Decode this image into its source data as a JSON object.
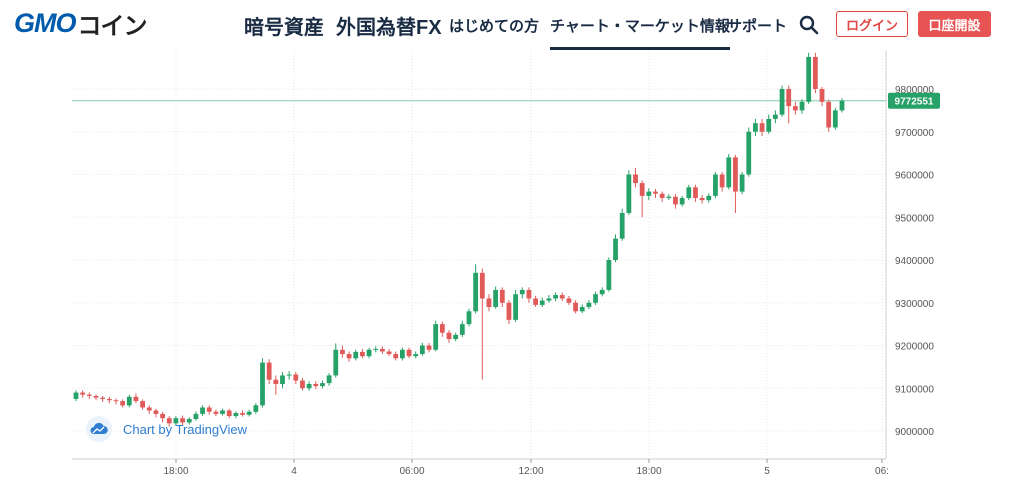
{
  "header": {
    "logo_gmo": "GMO",
    "logo_coin": "コイン",
    "nav": [
      {
        "label": "暗号資産"
      },
      {
        "label": "外国為替FX"
      },
      {
        "label": "はじめての方"
      },
      {
        "label": "チャート・マーケット情報"
      },
      {
        "label": "サポート"
      }
    ],
    "login_label": "ログイン",
    "open_account_label": "口座開設",
    "colors": {
      "navy": "#1a2b44",
      "brand_blue": "#005bac",
      "red": "#e04646"
    }
  },
  "chart": {
    "watermark": "Chart by TradingView",
    "current_price_label": "9772551",
    "y_ticks": [
      "9800000",
      "9700000",
      "9600000",
      "9500000",
      "9400000",
      "9300000",
      "9200000",
      "9100000",
      "9000000"
    ],
    "x_ticks": [
      "18:00",
      "4",
      "06:00",
      "12:00",
      "18:00",
      "5",
      "06:"
    ],
    "colors": {
      "up": "#26a269",
      "down": "#e05a5a",
      "price_line": "#26a269",
      "grid": "#e6e6e6"
    }
  },
  "chart_data": {
    "type": "candlestick",
    "y_unit": "JPY",
    "ylim": [
      8970000,
      9890000
    ],
    "current_price": 9772551,
    "candles": [
      [
        9075000,
        9090000,
        9095000,
        9070000
      ],
      [
        9090000,
        9085000,
        9095000,
        9078000
      ],
      [
        9085000,
        9082000,
        9090000,
        9075000
      ],
      [
        9082000,
        9078000,
        9085000,
        9072000
      ],
      [
        9078000,
        9075000,
        9082000,
        9068000
      ],
      [
        9075000,
        9072000,
        9080000,
        9065000
      ],
      [
        9072000,
        9070000,
        9076000,
        9062000
      ],
      [
        9070000,
        9060000,
        9074000,
        9055000
      ],
      [
        9060000,
        9080000,
        9085000,
        9055000
      ],
      [
        9080000,
        9070000,
        9088000,
        9065000
      ],
      [
        9070000,
        9055000,
        9074000,
        9050000
      ],
      [
        9055000,
        9048000,
        9060000,
        9040000
      ],
      [
        9048000,
        9040000,
        9052000,
        9032000
      ],
      [
        9040000,
        9030000,
        9045000,
        9020000
      ],
      [
        9030000,
        9018000,
        9035000,
        9010000
      ],
      [
        9018000,
        9030000,
        9035000,
        9012000
      ],
      [
        9030000,
        9020000,
        9036000,
        9014000
      ],
      [
        9020000,
        9028000,
        9032000,
        9015000
      ],
      [
        9028000,
        9040000,
        9046000,
        9024000
      ],
      [
        9040000,
        9055000,
        9060000,
        9035000
      ],
      [
        9055000,
        9045000,
        9060000,
        9038000
      ],
      [
        9045000,
        9040000,
        9050000,
        9035000
      ],
      [
        9040000,
        9048000,
        9052000,
        9036000
      ],
      [
        9048000,
        9035000,
        9052000,
        9030000
      ],
      [
        9035000,
        9042000,
        9046000,
        9030000
      ],
      [
        9042000,
        9038000,
        9048000,
        9034000
      ],
      [
        9038000,
        9045000,
        9050000,
        9034000
      ],
      [
        9045000,
        9060000,
        9065000,
        9040000
      ],
      [
        9060000,
        9160000,
        9170000,
        9055000
      ],
      [
        9160000,
        9120000,
        9168000,
        9110000
      ],
      [
        9120000,
        9110000,
        9130000,
        9085000
      ],
      [
        9110000,
        9130000,
        9138000,
        9100000
      ],
      [
        9130000,
        9132000,
        9140000,
        9120000
      ],
      [
        9132000,
        9118000,
        9138000,
        9110000
      ],
      [
        9118000,
        9100000,
        9124000,
        9095000
      ],
      [
        9100000,
        9110000,
        9116000,
        9094000
      ],
      [
        9110000,
        9105000,
        9116000,
        9098000
      ],
      [
        9105000,
        9112000,
        9118000,
        9100000
      ],
      [
        9112000,
        9130000,
        9135000,
        9106000
      ],
      [
        9130000,
        9190000,
        9205000,
        9125000
      ],
      [
        9190000,
        9180000,
        9200000,
        9172000
      ],
      [
        9180000,
        9170000,
        9186000,
        9162000
      ],
      [
        9170000,
        9185000,
        9190000,
        9165000
      ],
      [
        9185000,
        9175000,
        9192000,
        9170000
      ],
      [
        9175000,
        9190000,
        9195000,
        9170000
      ],
      [
        9190000,
        9192000,
        9198000,
        9184000
      ],
      [
        9192000,
        9186000,
        9198000,
        9180000
      ],
      [
        9186000,
        9180000,
        9192000,
        9175000
      ],
      [
        9180000,
        9170000,
        9186000,
        9165000
      ],
      [
        9170000,
        9190000,
        9195000,
        9165000
      ],
      [
        9190000,
        9175000,
        9195000,
        9170000
      ],
      [
        9175000,
        9180000,
        9186000,
        9170000
      ],
      [
        9180000,
        9200000,
        9206000,
        9176000
      ],
      [
        9200000,
        9190000,
        9206000,
        9184000
      ],
      [
        9190000,
        9250000,
        9258000,
        9186000
      ],
      [
        9250000,
        9230000,
        9256000,
        9220000
      ],
      [
        9230000,
        9215000,
        9236000,
        9206000
      ],
      [
        9215000,
        9225000,
        9230000,
        9210000
      ],
      [
        9225000,
        9250000,
        9258000,
        9220000
      ],
      [
        9250000,
        9280000,
        9286000,
        9245000
      ],
      [
        9280000,
        9370000,
        9390000,
        9275000
      ],
      [
        9370000,
        9310000,
        9380000,
        9120000
      ],
      [
        9310000,
        9290000,
        9320000,
        9280000
      ],
      [
        9290000,
        9330000,
        9338000,
        9286000
      ],
      [
        9330000,
        9300000,
        9336000,
        9290000
      ],
      [
        9300000,
        9260000,
        9306000,
        9250000
      ],
      [
        9260000,
        9320000,
        9330000,
        9255000
      ],
      [
        9320000,
        9330000,
        9336000,
        9310000
      ],
      [
        9330000,
        9310000,
        9336000,
        9300000
      ],
      [
        9310000,
        9295000,
        9316000,
        9290000
      ],
      [
        9295000,
        9305000,
        9312000,
        9290000
      ],
      [
        9305000,
        9310000,
        9318000,
        9300000
      ],
      [
        9310000,
        9318000,
        9324000,
        9304000
      ],
      [
        9318000,
        9310000,
        9324000,
        9304000
      ],
      [
        9310000,
        9300000,
        9316000,
        9295000
      ],
      [
        9300000,
        9280000,
        9306000,
        9275000
      ],
      [
        9280000,
        9290000,
        9296000,
        9276000
      ],
      [
        9290000,
        9300000,
        9306000,
        9285000
      ],
      [
        9300000,
        9320000,
        9326000,
        9295000
      ],
      [
        9320000,
        9330000,
        9336000,
        9315000
      ],
      [
        9330000,
        9400000,
        9406000,
        9326000
      ],
      [
        9400000,
        9450000,
        9460000,
        9395000
      ],
      [
        9450000,
        9510000,
        9520000,
        9445000
      ],
      [
        9510000,
        9600000,
        9610000,
        9505000
      ],
      [
        9600000,
        9580000,
        9615000,
        9570000
      ],
      [
        9580000,
        9550000,
        9586000,
        9500000
      ],
      [
        9550000,
        9560000,
        9568000,
        9540000
      ],
      [
        9560000,
        9555000,
        9566000,
        9545000
      ],
      [
        9555000,
        9545000,
        9560000,
        9536000
      ],
      [
        9545000,
        9548000,
        9554000,
        9540000
      ],
      [
        9548000,
        9530000,
        9554000,
        9520000
      ],
      [
        9530000,
        9545000,
        9550000,
        9525000
      ],
      [
        9545000,
        9570000,
        9576000,
        9540000
      ],
      [
        9570000,
        9545000,
        9576000,
        9536000
      ],
      [
        9545000,
        9540000,
        9552000,
        9532000
      ],
      [
        9540000,
        9550000,
        9556000,
        9534000
      ],
      [
        9550000,
        9600000,
        9606000,
        9545000
      ],
      [
        9600000,
        9570000,
        9606000,
        9560000
      ],
      [
        9570000,
        9640000,
        9648000,
        9565000
      ],
      [
        9640000,
        9560000,
        9646000,
        9510000
      ],
      [
        9560000,
        9600000,
        9606000,
        9554000
      ],
      [
        9600000,
        9700000,
        9710000,
        9595000
      ],
      [
        9700000,
        9720000,
        9730000,
        9690000
      ],
      [
        9720000,
        9700000,
        9730000,
        9690000
      ],
      [
        9700000,
        9730000,
        9740000,
        9695000
      ],
      [
        9730000,
        9740000,
        9750000,
        9720000
      ],
      [
        9740000,
        9800000,
        9808000,
        9735000
      ],
      [
        9800000,
        9760000,
        9808000,
        9720000
      ],
      [
        9760000,
        9750000,
        9770000,
        9740000
      ],
      [
        9750000,
        9770000,
        9776000,
        9742000
      ],
      [
        9770000,
        9875000,
        9885000,
        9765000
      ],
      [
        9875000,
        9800000,
        9885000,
        9790000
      ],
      [
        9800000,
        9770000,
        9805000,
        9760000
      ],
      [
        9770000,
        9710000,
        9775000,
        9700000
      ],
      [
        9710000,
        9750000,
        9756000,
        9705000
      ],
      [
        9750000,
        9772551,
        9778000,
        9745000
      ]
    ]
  }
}
